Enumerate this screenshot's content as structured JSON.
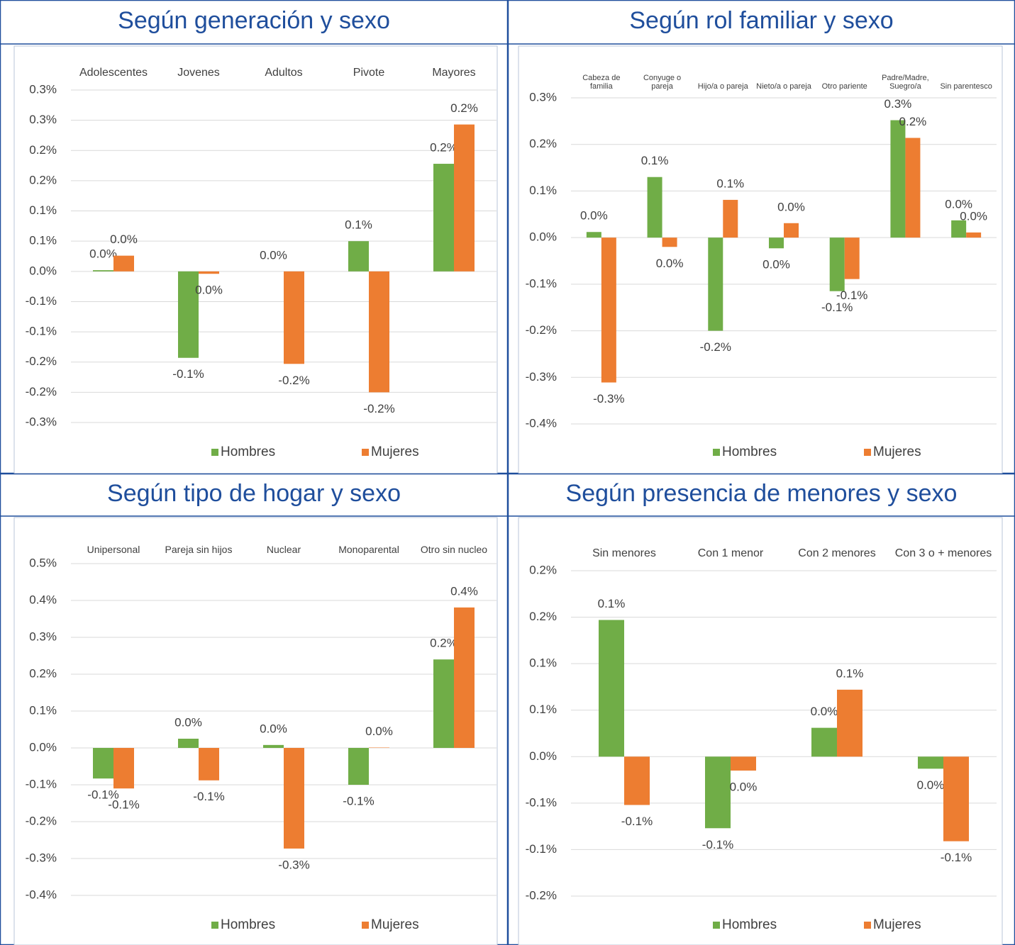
{
  "chart_data": [
    {
      "type": "bar",
      "title": "Según generación y sexo",
      "categories": [
        "Adolescentes",
        "Jovenes",
        "Adultos",
        "Pivote",
        "Mayores"
      ],
      "series": [
        {
          "name": "Hombres",
          "color": "#70ad47",
          "values": [
            0.002,
            -0.143,
            0,
            0.05,
            0.178
          ],
          "value_labels": [
            "0.0%",
            "-0.1%",
            "0.0%",
            "0.1%",
            "0.2%"
          ]
        },
        {
          "name": "Mujeres",
          "color": "#ed7d31",
          "values": [
            0.026,
            -0.004,
            -0.153,
            -0.2,
            0.243
          ],
          "value_labels": [
            "0.0%",
            "0.0%",
            "-0.2%",
            "-0.2%",
            "0.2%"
          ]
        }
      ],
      "ylim": [
        -0.25,
        0.3
      ],
      "yticks": [
        {
          "value": 0.3,
          "label": "0.3%"
        },
        {
          "value": 0.25,
          "label": "0.3%"
        },
        {
          "value": 0.2,
          "label": "0.2%"
        },
        {
          "value": 0.15,
          "label": "0.2%"
        },
        {
          "value": 0.1,
          "label": "0.1%"
        },
        {
          "value": 0.05,
          "label": "0.1%"
        },
        {
          "value": 0,
          "label": "0.0%"
        },
        {
          "value": -0.05,
          "label": "-0.1%"
        },
        {
          "value": -0.1,
          "label": "-0.1%"
        },
        {
          "value": -0.15,
          "label": "-0.2%"
        },
        {
          "value": -0.2,
          "label": "-0.2%"
        },
        {
          "value": -0.25,
          "label": "-0.3%"
        }
      ],
      "grid": true,
      "legend": "bottom"
    },
    {
      "type": "bar",
      "title": "Según rol familiar y sexo",
      "categories": [
        "Cabeza de familia",
        "Conyuge o pareja",
        "Hijo/a o pareja",
        "Nieto/a o pareja",
        "Otro pariente",
        "Padre/Madre, Suegro/a",
        "Sin parentesco"
      ],
      "series": [
        {
          "name": "Hombres",
          "color": "#70ad47",
          "values": [
            0.012,
            0.13,
            -0.2,
            -0.023,
            -0.115,
            0.252,
            0.037
          ],
          "value_labels": [
            "0.0%",
            "0.1%",
            "-0.2%",
            "0.0%",
            "-0.1%",
            "0.3%",
            "0.0%"
          ]
        },
        {
          "name": "Mujeres",
          "color": "#ed7d31",
          "values": [
            -0.311,
            -0.02,
            0.081,
            0.031,
            -0.089,
            0.214,
            0.011
          ],
          "value_labels": [
            "-0.3%",
            "0.0%",
            "0.1%",
            "0.0%",
            "-0.1%",
            "0.2%",
            "0.0%"
          ]
        }
      ],
      "ylim": [
        -0.4,
        0.3
      ],
      "yticks": [
        {
          "value": 0.3,
          "label": "0.3%"
        },
        {
          "value": 0.2,
          "label": "0.2%"
        },
        {
          "value": 0.1,
          "label": "0.1%"
        },
        {
          "value": 0,
          "label": "0.0%"
        },
        {
          "value": -0.1,
          "label": "-0.1%"
        },
        {
          "value": -0.2,
          "label": "-0.2%"
        },
        {
          "value": -0.3,
          "label": "-0.3%"
        },
        {
          "value": -0.4,
          "label": "-0.4%"
        }
      ],
      "grid": true,
      "legend": "bottom"
    },
    {
      "type": "bar",
      "title": "Según tipo de hogar y sexo",
      "categories": [
        "Unipersonal",
        "Pareja sin hijos",
        "Nuclear",
        "Monoparental",
        "Otro sin nucleo"
      ],
      "series": [
        {
          "name": "Hombres",
          "color": "#70ad47",
          "values": [
            -0.083,
            0.025,
            0.008,
            -0.1,
            0.24
          ],
          "value_labels": [
            "-0.1%",
            "0.0%",
            "0.0%",
            "-0.1%",
            "0.2%"
          ]
        },
        {
          "name": "Mujeres",
          "color": "#ed7d31",
          "values": [
            -0.11,
            -0.088,
            -0.273,
            0.001,
            0.381
          ],
          "value_labels": [
            "-0.1%",
            "-0.1%",
            "-0.3%",
            "0.0%",
            "0.4%"
          ]
        }
      ],
      "ylim": [
        -0.4,
        0.5
      ],
      "yticks": [
        {
          "value": 0.5,
          "label": "0.5%"
        },
        {
          "value": 0.4,
          "label": "0.4%"
        },
        {
          "value": 0.3,
          "label": "0.3%"
        },
        {
          "value": 0.2,
          "label": "0.2%"
        },
        {
          "value": 0.1,
          "label": "0.1%"
        },
        {
          "value": 0,
          "label": "0.0%"
        },
        {
          "value": -0.1,
          "label": "-0.1%"
        },
        {
          "value": -0.2,
          "label": "-0.2%"
        },
        {
          "value": -0.3,
          "label": "-0.3%"
        },
        {
          "value": -0.4,
          "label": "-0.4%"
        }
      ],
      "grid": true,
      "legend": "bottom"
    },
    {
      "type": "bar",
      "title": "Según presencia de menores y sexo",
      "categories": [
        "Sin menores",
        "Con 1 menor",
        "Con 2 menores",
        "Con 3 o + menores"
      ],
      "series": [
        {
          "name": "Hombres",
          "color": "#70ad47",
          "values": [
            0.147,
            -0.077,
            0.031,
            -0.013
          ],
          "value_labels": [
            "0.1%",
            "-0.1%",
            "0.0%",
            "0.0%"
          ]
        },
        {
          "name": "Mujeres",
          "color": "#ed7d31",
          "values": [
            -0.052,
            -0.015,
            0.072,
            -0.091
          ],
          "value_labels": [
            "-0.1%",
            "0.0%",
            "0.1%",
            "-0.1%"
          ]
        }
      ],
      "ylim": [
        -0.15,
        0.2
      ],
      "yticks": [
        {
          "value": 0.2,
          "label": "0.2%"
        },
        {
          "value": 0.15,
          "label": "0.2%"
        },
        {
          "value": 0.1,
          "label": "0.1%"
        },
        {
          "value": 0.05,
          "label": "0.1%"
        },
        {
          "value": 0,
          "label": "0.0%"
        },
        {
          "value": -0.05,
          "label": "-0.1%"
        },
        {
          "value": -0.1,
          "label": "-0.1%"
        },
        {
          "value": -0.15,
          "label": "-0.2%"
        }
      ],
      "grid": true,
      "legend": "bottom"
    }
  ]
}
